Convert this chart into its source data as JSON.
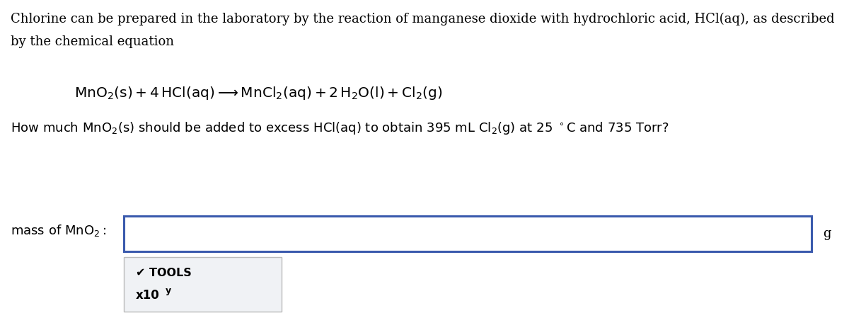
{
  "bg_color": "#ffffff",
  "fig_width": 12.0,
  "fig_height": 4.49,
  "input_box_color": "#3a5aad",
  "tools_box_bg": "#f0f2f5",
  "tools_box_border": "#bbbbbb",
  "font_size_body": 13.0,
  "font_size_equation": 14.5,
  "line1": "Chlorine can be prepared in the laboratory by the reaction of manganese dioxide with hydrochloric acid, HCl(aq), as described",
  "line2": "by the chemical equation",
  "question": "How much MnO₂(s) should be added to excess HCl(aq) to obtain 395 mL Cl₂(g) at 25 °C and 735 Torr?",
  "mass_label": "mass of MnO₂:",
  "unit": "g",
  "tools_text": "✔ TOOLS",
  "x10_text": "x10",
  "superscript_y": "y"
}
